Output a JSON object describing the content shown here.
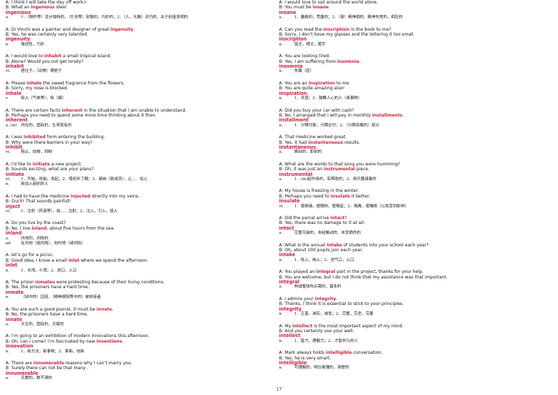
{
  "page_number": "17",
  "columns": [
    [
      {
        "a": [
          "A: I think I will take the day off work>"
        ],
        "b": [
          "B: What an ",
          "ingenious",
          " idea!"
        ],
        "word": "ingenious",
        "defs": [
          {
            "pos": "a.",
            "text": "1．（物件等）设计独特的，（方法等）别致的，巧妙的；2．（人，头脑）灵巧的，关于创造发明的"
          }
        ]
      },
      {
        "a": [
          "A: Di VInchi was a painter and designer of great ",
          "ingenuity",
          "."
        ],
        "b": [
          "B: Yes, he was certainly very talented."
        ],
        "word": "ingenuity",
        "defs": [
          {
            "pos": "n.",
            "text": "独创性，巧妙"
          }
        ]
      },
      {
        "a": [
          "A: I would love to ",
          "inhabit",
          " a small tropical island."
        ],
        "b": [
          "B: Alone? Would you not get lonely?"
        ],
        "word": "inhabit",
        "defs": [
          {
            "pos": "vt.",
            "text": "居住于，（动物）栖居于"
          }
        ]
      },
      {
        "a": [
          "A: Please ",
          "inhale",
          " the sweet fragrance from the flowers."
        ],
        "b": [
          "B: Sorry, my nose is blocked."
        ],
        "word": "inhale",
        "defs": [
          {
            "pos": "v.",
            "text": "吸入（气体等），吸（烟）"
          }
        ]
      },
      {
        "a": [
          "A: There are certain facts ",
          "inherent",
          " in the situation that I am unable to understand."
        ],
        "b": [
          "B: Perhaps you need to spend some more time thinking about it then."
        ],
        "word": "inherent",
        "defs": [
          {
            "pos": "a. (in)",
            "text": "内在的，固有的，生来就有的"
          }
        ]
      },
      {
        "a": [
          "A: I was ",
          "inhibited",
          " form entering the building."
        ],
        "b": [
          "B: Why were there barriers in your way?"
        ],
        "word": "inhibit",
        "defs": [
          {
            "pos": "vt.",
            "text": "阻止，妨碍，抑制"
          }
        ]
      },
      {
        "a": [
          "A: I’d like to ",
          "initiate",
          " a new project."
        ],
        "b": [
          "B: Sounds exciting, what are your plans?"
        ],
        "word": "initiate",
        "defs": [
          {
            "pos": "vt.",
            "text": "1．开始，创始，发起；2．使初步了解；3．接纳（新成员），让．．．加入"
          },
          {
            "pos": "n.",
            "text": "新加入组织的人"
          }
        ]
      },
      {
        "a": [
          "A: I had to have the medicine ",
          "injected",
          " directly into my veins."
        ],
        "b": [
          "B: Ouch! That sounds painfull!"
        ],
        "word": "inject",
        "defs": [
          {
            "pos": "vt.",
            "text": "1．注射（药液等），给．．．注射；2．注入，引入，投入"
          }
        ]
      },
      {
        "a": [
          "A: Do you live by the coast?"
        ],
        "b": [
          "B: No, I live ",
          "inland",
          ", about five hours from the sea."
        ],
        "word": "inland",
        "defs": [
          {
            "pos": "a.",
            "text": "内地的，内陆的"
          },
          {
            "pos": "ad.",
            "text": "在内地（或内陆），向内地（或内陆）"
          }
        ]
      },
      {
        "a": [
          "A: let’s go for a picnic."
        ],
        "b": [
          "B: Good idea, I know a small ",
          "inlet",
          " where we spend the afternoon."
        ],
        "word": "inlet",
        "defs": [
          {
            "pos": "n.",
            "text": "1．水湾，小湾；2．进口，入口"
          }
        ]
      },
      {
        "a": [
          "A: The prison ",
          "inmates",
          " were protesting because of their living conditions."
        ],
        "b": [
          "B: Yes, the prisoners have a hard time."
        ],
        "word": "inmate",
        "defs": [
          {
            "pos": "n.",
            "text": "（狱中的）囚徒，（精神病院等中的）被收容者"
          }
        ]
      },
      {
        "a": [
          "A: You are such a good pianist, it must be ",
          "innate",
          "."
        ],
        "b": [
          "B: No, the prisoners have a hard time."
        ],
        "word": "innate",
        "defs": [
          {
            "pos": "a.",
            "text": "天生的，固有的，天赋的"
          }
        ]
      },
      {
        "a": [
          "A: I’m going to an exhibition of modern innovations this afternoon."
        ],
        "b": [
          "B: Oh, can I come? I’m fascinated by new ",
          "inventions",
          "."
        ],
        "word": "innovation",
        "defs": [
          {
            "pos": "n.",
            "text": "1．新方法，新事物；2．革新，创新"
          }
        ]
      },
      {
        "a": [
          "A: There are ",
          "innumerable",
          " reasons why I can’t marry you."
        ],
        "b": [
          "B: Surely there can not be that many ."
        ],
        "word": "innumerable",
        "defs": [
          {
            "pos": "a.",
            "text": "无数的，数不清的"
          }
        ]
      }
    ],
    [
      {
        "a": [
          "A: I would love to sail around the world alone."
        ],
        "b": [
          "B: You must be ",
          "insane",
          "."
        ],
        "word": "insane",
        "defs": [
          {
            "pos": "a.",
            "text": "1．蠢极的，荒唐的；2．（患）精神病的，精神失常的，疯狂的"
          }
        ]
      },
      {
        "a": [
          "A: Can you read the ",
          "inscription",
          " in the book to me?"
        ],
        "b": [
          "B: Sorry, I don’t have my glasses and the lettering it too small."
        ],
        "word": "inscription",
        "defs": [
          {
            "pos": "n.",
            "text": "铭文，碑文，题字"
          }
        ]
      },
      {
        "a": [
          "A: You are looking tired."
        ],
        "b": [
          "B: Yes, I am suffering from ",
          "insomnia",
          "."
        ],
        "word": "insomnia",
        "defs": [
          {
            "pos": "n.",
            "text": "失眠（症）"
          }
        ]
      },
      {
        "a": [
          "A: You are an ",
          "inspiration",
          " to me."
        ],
        "b": [
          "B: You are quite amazing also!"
        ],
        "word": "inspiration",
        "defs": [
          {
            "pos": "n.",
            "text": "1．灵感；2．鼓舞人心的人（或事物）"
          }
        ]
      },
      {
        "a": [
          "A: Did you buy your car with cash?"
        ],
        "b": [
          "B: No, I arranged that I will pay in monthly ",
          "installments",
          "."
        ],
        "word": "installment",
        "defs": [
          {
            "pos": "n.",
            "text": "1．分期付款，分期交付；2．（分期连载的）部分"
          }
        ]
      },
      {
        "a": [
          "A: That medicine worked great."
        ],
        "b": [
          "B: Yes, it had ",
          "instantaneous",
          " results."
        ],
        "word": "instantaneous",
        "defs": [
          {
            "pos": "a.",
            "text": "瞬间的，即刻的"
          }
        ]
      },
      {
        "a": [
          "A: What are the words to that song you were humming?"
        ],
        "b": [
          "B: Oh, it was just an ",
          "instrumental",
          " piece."
        ],
        "word": "instrumental",
        "defs": [
          {
            "pos": "a.",
            "text": "1．(in)起作用的，有帮助的；2．用乐器演奏的"
          }
        ]
      },
      {
        "a": [
          "A: My house is freezing in the winter."
        ],
        "b": [
          "B: Perhaps you need to ",
          "insulate",
          " it better."
        ],
        "word": "insulate",
        "defs": [
          {
            "pos": "vt.",
            "text": "1．使绝缘，使隔热，使隔音；2．隔离，使隔绝（以免受到影响）"
          }
        ]
      },
      {
        "a": [
          "A: Did the parcel arrive ",
          "intact",
          "?"
        ],
        "b": [
          "B: Yes, there was no damage to it at all."
        ],
        "word": "intact",
        "defs": [
          {
            "pos": "a.",
            "text": "完整无缺的，未经触动的，未受损伤的"
          }
        ]
      },
      {
        "a": [
          "A: What is the annual ",
          "intake",
          " of students into your school each year?"
        ],
        "b": [
          "B: Oh, about 100 pupils join each year."
        ],
        "word": "intake",
        "defs": [
          {
            "pos": "n.",
            "text": "1．吸入，纳入；2．进气口，入口"
          }
        ]
      },
      {
        "a": [
          "A: You played an ",
          "integral",
          " part in the project, thanks for your help."
        ],
        "b": [
          "B: You are welcome, but I do not think that my assistance was that important."
        ],
        "word": "integral",
        "defs": [
          {
            "pos": "a.",
            "text": "构成整体所必需的，基本的"
          }
        ]
      },
      {
        "a": [
          "A: I admire your ",
          "integrity",
          "."
        ],
        "b": [
          "B: Thanks, I think it is essential to stick to your principles."
        ],
        "word": "integrity",
        "defs": [
          {
            "pos": "n.",
            "text": "1．正直，诚实，诚恳；2．完整，完全，完善"
          }
        ]
      },
      {
        "a": [
          "A: My ",
          "intellect",
          " is the most important aspect of my mind."
        ],
        "b": [
          "B: And you certainly use your well."
        ],
        "word": "intellect",
        "defs": [
          {
            "pos": "n.",
            "text": "1．智力，理解力；2．才智非凡的人"
          }
        ]
      },
      {
        "a": [
          "A: Mark always holds ",
          "intelligible",
          " conversation."
        ],
        "b": [
          "B: Yes, he is very smart."
        ],
        "word": "intelligible",
        "defs": [
          {
            "pos": "a.",
            "text": "可理解的，明白易懂的，清楚的"
          }
        ]
      }
    ]
  ]
}
